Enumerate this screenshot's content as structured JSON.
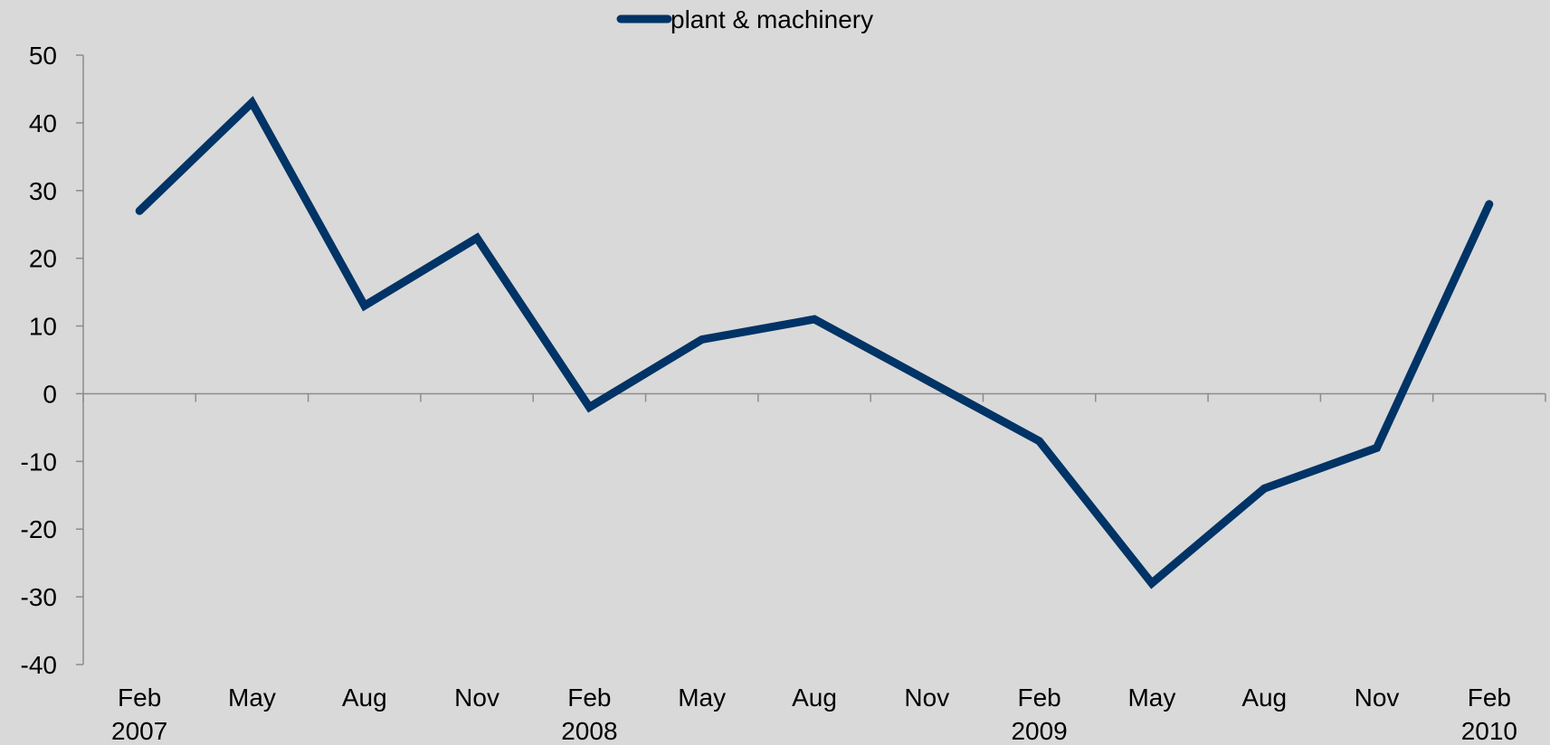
{
  "chart_data": {
    "type": "line",
    "title": "",
    "xlabel": "",
    "ylabel": "",
    "categories": [
      {
        "month": "Feb",
        "year": "2007"
      },
      {
        "month": "May",
        "year": ""
      },
      {
        "month": "Aug",
        "year": ""
      },
      {
        "month": "Nov",
        "year": ""
      },
      {
        "month": "Feb",
        "year": "2008"
      },
      {
        "month": "May",
        "year": ""
      },
      {
        "month": "Aug",
        "year": ""
      },
      {
        "month": "Nov",
        "year": ""
      },
      {
        "month": "Feb",
        "year": "2009"
      },
      {
        "month": "May",
        "year": ""
      },
      {
        "month": "Aug",
        "year": ""
      },
      {
        "month": "Nov",
        "year": ""
      },
      {
        "month": "Feb",
        "year": "2010"
      }
    ],
    "series": [
      {
        "name": "plant & machinery",
        "color": "#003366",
        "values": [
          27,
          43,
          13,
          23,
          -2,
          8,
          11,
          2,
          -7,
          -28,
          -14,
          -8,
          28
        ]
      }
    ],
    "ylim": [
      -40,
      50
    ],
    "yticks": [
      50,
      40,
      30,
      20,
      10,
      0,
      -10,
      -20,
      -30,
      -40
    ],
    "grid": false,
    "legend_position": "top-center"
  }
}
